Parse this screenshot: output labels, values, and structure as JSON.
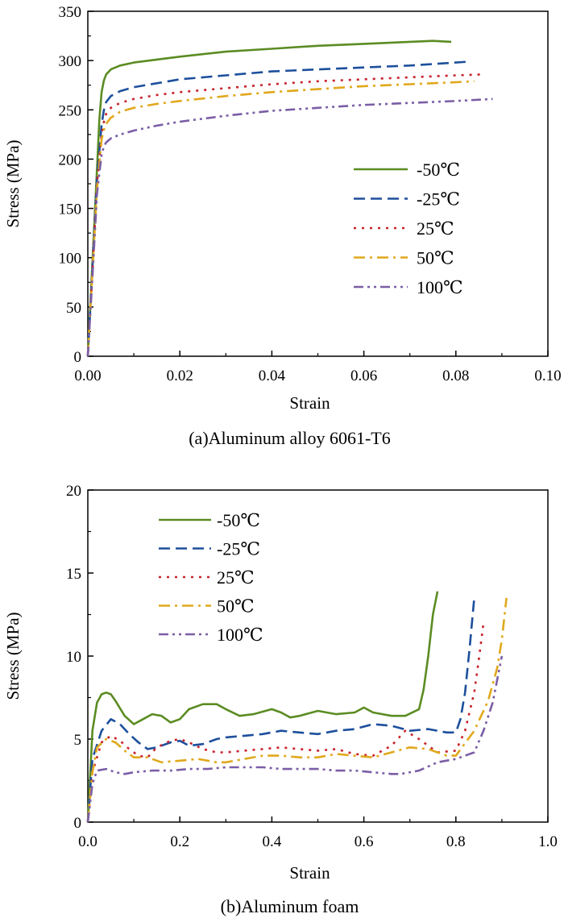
{
  "chart_data": [
    {
      "type": "line",
      "title": "",
      "caption": "(a)Aluminum alloy 6061-T6",
      "xlabel": "Strain",
      "ylabel": "Stress (MPa)",
      "xlim": [
        0,
        0.1
      ],
      "ylim": [
        0,
        350
      ],
      "xticks": [
        0,
        0.02,
        0.04,
        0.06,
        0.08,
        0.1
      ],
      "xtick_labels": [
        "0.00",
        "0.02",
        "0.04",
        "0.06",
        "0.08",
        "0.10"
      ],
      "yticks": [
        0,
        50,
        100,
        150,
        200,
        250,
        300,
        350
      ],
      "ytick_labels": [
        "0",
        "50",
        "100",
        "150",
        "200",
        "250",
        "300",
        "350"
      ],
      "legend_position": "center-right",
      "series": [
        {
          "name": "-50℃",
          "color": "#5b8c23",
          "dash": "solid",
          "x": [
            0,
            0.001,
            0.002,
            0.0025,
            0.003,
            0.0035,
            0.004,
            0.005,
            0.007,
            0.01,
            0.015,
            0.02,
            0.03,
            0.04,
            0.05,
            0.06,
            0.07,
            0.075,
            0.079
          ],
          "y": [
            0,
            95,
            190,
            240,
            268,
            280,
            286,
            291,
            295,
            298,
            301,
            304,
            309,
            312,
            315,
            317,
            319,
            320,
            319
          ]
        },
        {
          "name": "-25℃",
          "color": "#1d4f9c",
          "dash": "dashed",
          "x": [
            0,
            0.001,
            0.002,
            0.003,
            0.0035,
            0.004,
            0.005,
            0.007,
            0.01,
            0.015,
            0.02,
            0.03,
            0.04,
            0.05,
            0.06,
            0.07,
            0.08,
            0.083
          ],
          "y": [
            0,
            90,
            180,
            235,
            250,
            258,
            264,
            269,
            273,
            277,
            281,
            285,
            289,
            291,
            293,
            295,
            298,
            299
          ]
        },
        {
          "name": "25℃",
          "color": "#c8232c",
          "dash": "dotted",
          "x": [
            0,
            0.001,
            0.002,
            0.003,
            0.0035,
            0.004,
            0.005,
            0.007,
            0.01,
            0.015,
            0.02,
            0.03,
            0.04,
            0.05,
            0.06,
            0.07,
            0.08,
            0.086
          ],
          "y": [
            0,
            85,
            175,
            225,
            238,
            246,
            252,
            257,
            261,
            265,
            268,
            272,
            276,
            279,
            281,
            283,
            285,
            286
          ]
        },
        {
          "name": "50℃",
          "color": "#e0a81c",
          "dash": "dashdot",
          "x": [
            0,
            0.001,
            0.002,
            0.003,
            0.0035,
            0.004,
            0.005,
            0.007,
            0.01,
            0.015,
            0.02,
            0.03,
            0.04,
            0.05,
            0.06,
            0.07,
            0.08,
            0.084
          ],
          "y": [
            0,
            85,
            170,
            220,
            230,
            236,
            242,
            248,
            252,
            256,
            259,
            264,
            268,
            271,
            274,
            276,
            278,
            279
          ]
        },
        {
          "name": "100℃",
          "color": "#7b5ea6",
          "dash": "dashdotdot",
          "x": [
            0,
            0.001,
            0.002,
            0.003,
            0.0035,
            0.004,
            0.005,
            0.007,
            0.01,
            0.015,
            0.02,
            0.03,
            0.04,
            0.05,
            0.06,
            0.07,
            0.08,
            0.088
          ],
          "y": [
            0,
            80,
            165,
            205,
            213,
            217,
            221,
            225,
            229,
            234,
            238,
            244,
            249,
            252,
            255,
            257,
            259,
            261
          ]
        }
      ]
    },
    {
      "type": "line",
      "title": "",
      "caption": "(b)Aluminum foam",
      "xlabel": "Strain",
      "ylabel": "Stress (MPa)",
      "xlim": [
        0,
        1.0
      ],
      "ylim": [
        0,
        20
      ],
      "xticks": [
        0,
        0.2,
        0.4,
        0.6,
        0.8,
        1.0
      ],
      "xtick_labels": [
        "0.0",
        "0.2",
        "0.4",
        "0.6",
        "0.8",
        "1.0"
      ],
      "yticks": [
        0,
        5,
        10,
        15,
        20
      ],
      "ytick_labels": [
        "0",
        "5",
        "10",
        "15",
        "20"
      ],
      "legend_position": "top-left",
      "series": [
        {
          "name": "-50℃",
          "color": "#5b8c23",
          "dash": "solid",
          "x": [
            0,
            0.01,
            0.02,
            0.03,
            0.04,
            0.05,
            0.06,
            0.08,
            0.1,
            0.12,
            0.14,
            0.16,
            0.18,
            0.2,
            0.22,
            0.25,
            0.28,
            0.3,
            0.33,
            0.36,
            0.4,
            0.42,
            0.44,
            0.46,
            0.5,
            0.54,
            0.58,
            0.6,
            0.62,
            0.66,
            0.69,
            0.72,
            0.73,
            0.74,
            0.75,
            0.76
          ],
          "y": [
            0,
            5.5,
            7.2,
            7.7,
            7.8,
            7.7,
            7.3,
            6.4,
            5.9,
            6.2,
            6.5,
            6.4,
            6.0,
            6.2,
            6.8,
            7.1,
            7.1,
            6.8,
            6.4,
            6.5,
            6.8,
            6.6,
            6.3,
            6.4,
            6.7,
            6.5,
            6.6,
            6.9,
            6.6,
            6.4,
            6.4,
            6.8,
            8.0,
            10.0,
            12.5,
            13.9
          ]
        },
        {
          "name": "-25℃",
          "color": "#1d4f9c",
          "dash": "dashed",
          "x": [
            0,
            0.01,
            0.03,
            0.05,
            0.07,
            0.09,
            0.11,
            0.13,
            0.15,
            0.18,
            0.2,
            0.22,
            0.25,
            0.28,
            0.3,
            0.34,
            0.38,
            0.42,
            0.46,
            0.5,
            0.54,
            0.58,
            0.62,
            0.66,
            0.7,
            0.74,
            0.78,
            0.8,
            0.81,
            0.82,
            0.83,
            0.84
          ],
          "y": [
            0,
            3.8,
            5.5,
            6.2,
            5.9,
            5.3,
            4.8,
            4.4,
            4.5,
            4.8,
            4.9,
            4.6,
            4.7,
            5.0,
            5.1,
            5.2,
            5.3,
            5.5,
            5.4,
            5.3,
            5.5,
            5.6,
            5.9,
            5.8,
            5.5,
            5.6,
            5.4,
            5.4,
            6.2,
            7.8,
            10.5,
            13.5
          ]
        },
        {
          "name": "25℃",
          "color": "#c8232c",
          "dash": "dotted",
          "x": [
            0,
            0.01,
            0.03,
            0.05,
            0.07,
            0.09,
            0.11,
            0.13,
            0.15,
            0.18,
            0.2,
            0.22,
            0.25,
            0.28,
            0.3,
            0.34,
            0.38,
            0.42,
            0.46,
            0.5,
            0.54,
            0.58,
            0.62,
            0.66,
            0.69,
            0.72,
            0.76,
            0.8,
            0.82,
            0.84,
            0.85,
            0.86
          ],
          "y": [
            0,
            3.0,
            4.8,
            5.2,
            4.9,
            4.4,
            4.0,
            3.9,
            4.5,
            4.9,
            5.0,
            4.8,
            4.4,
            4.2,
            4.2,
            4.3,
            4.4,
            4.5,
            4.4,
            4.3,
            4.4,
            4.1,
            4.0,
            4.6,
            5.5,
            5.0,
            4.2,
            4.3,
            5.5,
            7.8,
            9.8,
            12.0
          ]
        },
        {
          "name": "50℃",
          "color": "#e0a81c",
          "dash": "dashdot",
          "x": [
            0,
            0.01,
            0.02,
            0.04,
            0.06,
            0.08,
            0.1,
            0.13,
            0.16,
            0.2,
            0.24,
            0.28,
            0.3,
            0.34,
            0.38,
            0.42,
            0.46,
            0.5,
            0.54,
            0.58,
            0.62,
            0.66,
            0.7,
            0.74,
            0.78,
            0.8,
            0.84,
            0.87,
            0.89,
            0.9,
            0.91
          ],
          "y": [
            0,
            3.0,
            4.5,
            5.0,
            4.8,
            4.3,
            3.9,
            3.9,
            3.6,
            3.7,
            3.8,
            3.6,
            3.6,
            3.8,
            4.0,
            4.0,
            3.9,
            3.9,
            4.1,
            4.0,
            3.9,
            4.2,
            4.5,
            4.4,
            4.0,
            4.0,
            5.5,
            7.3,
            9.3,
            11.0,
            13.5
          ]
        },
        {
          "name": "100℃",
          "color": "#7b5ea6",
          "dash": "dashdotdot",
          "x": [
            0,
            0.01,
            0.02,
            0.04,
            0.06,
            0.08,
            0.1,
            0.14,
            0.18,
            0.22,
            0.26,
            0.3,
            0.34,
            0.38,
            0.42,
            0.46,
            0.5,
            0.54,
            0.58,
            0.62,
            0.66,
            0.68,
            0.72,
            0.76,
            0.8,
            0.84,
            0.86,
            0.88,
            0.9
          ],
          "y": [
            0,
            2.3,
            3.1,
            3.2,
            3.0,
            2.9,
            3.0,
            3.1,
            3.1,
            3.2,
            3.2,
            3.3,
            3.3,
            3.3,
            3.2,
            3.2,
            3.2,
            3.1,
            3.1,
            3.0,
            2.9,
            2.9,
            3.1,
            3.6,
            3.8,
            4.2,
            5.5,
            7.2,
            10.0
          ]
        }
      ]
    }
  ]
}
